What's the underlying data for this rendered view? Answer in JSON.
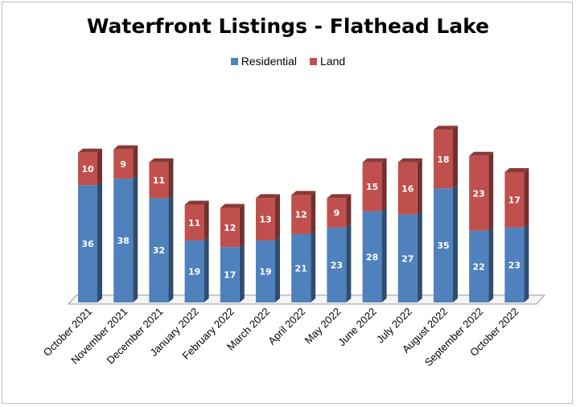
{
  "chart_data": {
    "type": "bar",
    "stacked": true,
    "title": "Waterfront Listings - Flathead Lake",
    "categories": [
      "October 2021",
      "November 2021",
      "December 2021",
      "January 2022",
      "February 2022",
      "March 2022",
      "April 2022",
      "May 2022",
      "June 2022",
      "July 2022",
      "August 2022",
      "September 2022",
      "October 2022"
    ],
    "series": [
      {
        "name": "Residential",
        "color": "#4f81bd",
        "values": [
          36,
          38,
          32,
          19,
          17,
          19,
          21,
          23,
          28,
          27,
          35,
          22,
          23
        ]
      },
      {
        "name": "Land",
        "color": "#c0504d",
        "values": [
          10,
          9,
          11,
          11,
          12,
          13,
          12,
          9,
          15,
          16,
          18,
          23,
          17
        ]
      }
    ],
    "legend_position": "top",
    "grid": false,
    "ylim": [
      0,
      55
    ]
  }
}
